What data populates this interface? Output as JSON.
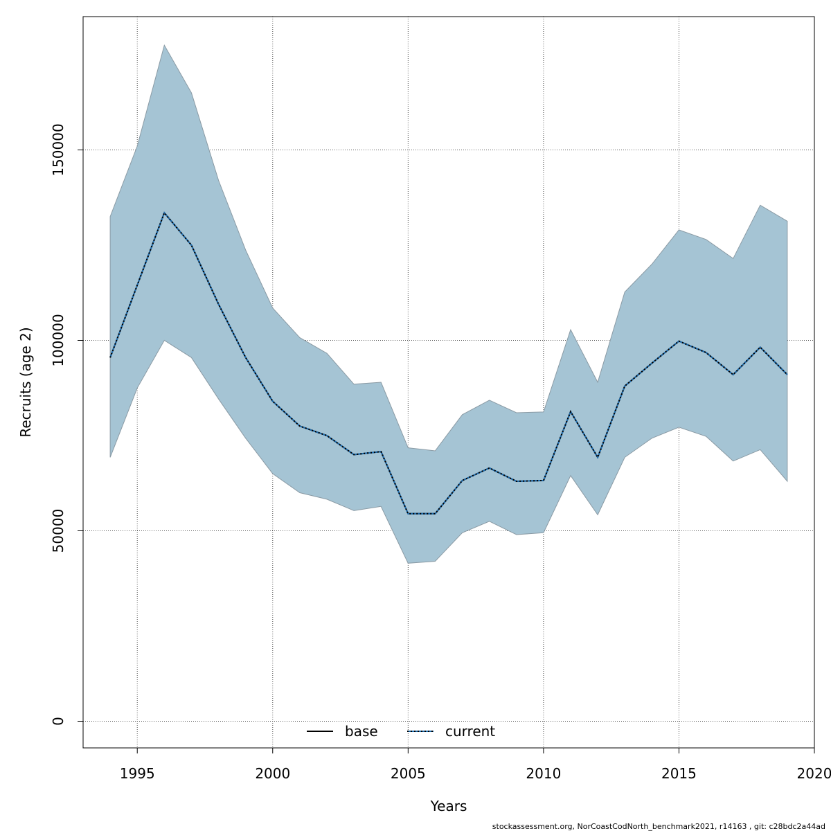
{
  "chart_data": {
    "type": "line",
    "xlabel": "Years",
    "ylabel": "Recruits (age 2)",
    "xlim": [
      1993,
      2020
    ],
    "ylim": [
      -7000,
      185000
    ],
    "x_ticks": [
      1995,
      2000,
      2005,
      2010,
      2015,
      2020
    ],
    "y_ticks": [
      0,
      50000,
      100000,
      150000
    ],
    "grid": true,
    "legend_position": "bottom-center",
    "x": [
      1994,
      1995,
      1996,
      1997,
      1998,
      1999,
      2000,
      2001,
      2002,
      2003,
      2004,
      2005,
      2006,
      2007,
      2008,
      2009,
      2010,
      2011,
      2012,
      2013,
      2014,
      2015,
      2016,
      2017,
      2018,
      2019
    ],
    "series": [
      {
        "name": "base",
        "style": "solid",
        "color": "#000000",
        "values": [
          95500,
          114500,
          133500,
          125000,
          109500,
          95500,
          84000,
          77500,
          75000,
          70000,
          70800,
          54500,
          54500,
          63200,
          66500,
          63000,
          63200,
          81300,
          69300,
          88000,
          94000,
          99800,
          96800,
          91000,
          98200,
          91000
        ]
      },
      {
        "name": "current",
        "style": "dotted",
        "color": "#1f6fb2",
        "values": [
          95500,
          114500,
          133500,
          125000,
          109500,
          95500,
          84000,
          77500,
          75000,
          70000,
          70800,
          54500,
          54500,
          63200,
          66500,
          63000,
          63200,
          81300,
          69300,
          88000,
          94000,
          99800,
          96800,
          91000,
          98200,
          91000
        ]
      }
    ],
    "band": {
      "color": "#a5c4d4",
      "edge_color": "#8a9aa4",
      "lower": [
        69300,
        87500,
        100000,
        95500,
        84600,
        74300,
        65000,
        60000,
        58300,
        55300,
        56400,
        41500,
        42000,
        49500,
        52500,
        49000,
        49500,
        64500,
        54200,
        69300,
        74300,
        77200,
        74800,
        68300,
        71300,
        63000
      ],
      "upper": [
        132500,
        151000,
        177500,
        165000,
        142000,
        123700,
        108500,
        100700,
        96600,
        88500,
        89000,
        71800,
        71000,
        80500,
        84300,
        81000,
        81200,
        102800,
        89000,
        112700,
        120000,
        129000,
        126500,
        121500,
        135500,
        131300
      ]
    }
  },
  "footer_text": "stockassessment.org, NorCoastCodNorth_benchmark2021, r14163 , git: c28bdc2a44ad"
}
